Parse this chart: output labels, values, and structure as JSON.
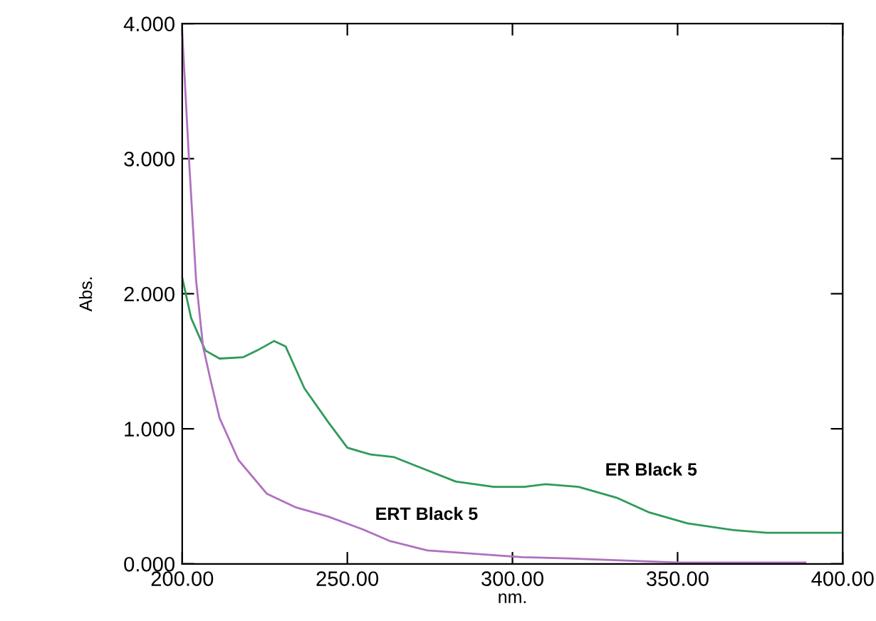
{
  "chart_data": {
    "type": "line",
    "xlabel": "nm.",
    "ylabel": "Abs.",
    "xlim": [
      200,
      400
    ],
    "ylim": [
      0,
      4
    ],
    "xticks": [
      {
        "value": 200,
        "label": "200.00"
      },
      {
        "value": 250,
        "label": "250.00"
      },
      {
        "value": 300,
        "label": "300.00"
      },
      {
        "value": 350,
        "label": "350.00"
      },
      {
        "value": 400,
        "label": "400.00"
      }
    ],
    "yticks": [
      {
        "value": 0,
        "label": "0.000"
      },
      {
        "value": 1,
        "label": "1.000"
      },
      {
        "value": 2,
        "label": "2.000"
      },
      {
        "value": 3,
        "label": "3.000"
      },
      {
        "value": 4,
        "label": "4.000"
      }
    ],
    "grid": false,
    "legend": false,
    "marker": "none",
    "line_style": "solid",
    "series": [
      {
        "name": "ER Black 5",
        "color": "#2e9b5a",
        "x": [
          200,
          202.7,
          207,
          211.3,
          218.5,
          222.7,
          227.8,
          231.3,
          237,
          244.2,
          250,
          257,
          264.2,
          271.4,
          282.8,
          294.3,
          303.6,
          310,
          320,
          331.5,
          341.5,
          353,
          367,
          377,
          399.5
        ],
        "values": [
          2.12,
          1.82,
          1.58,
          1.52,
          1.53,
          1.58,
          1.65,
          1.61,
          1.3,
          1.05,
          0.86,
          0.81,
          0.79,
          0.72,
          0.61,
          0.57,
          0.57,
          0.59,
          0.57,
          0.49,
          0.38,
          0.3,
          0.25,
          0.23,
          0.23
        ]
      },
      {
        "name": "ERT Black 5",
        "color": "#b070c0",
        "x": [
          200,
          202,
          204.2,
          206.3,
          208.5,
          211.3,
          217,
          225.6,
          234.2,
          244.2,
          254.2,
          262.8,
          274.2,
          302.9,
          317,
          350,
          388.7
        ],
        "values": [
          3.94,
          3.02,
          2.1,
          1.61,
          1.37,
          1.08,
          0.77,
          0.52,
          0.42,
          0.35,
          0.26,
          0.17,
          0.1,
          0.05,
          0.04,
          0.01,
          0.01
        ]
      }
    ]
  }
}
